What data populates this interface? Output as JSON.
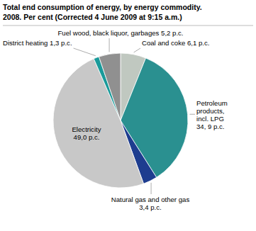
{
  "chart_data": {
    "type": "pie",
    "title": "Total end consumption of energy, by energy commodity.",
    "subtitle": "2008. Per cent (Corrected 4 June 2009 at 9:15 a.m.)",
    "categories": [
      "Coal and coke 6,1 p.c.",
      "Petroleum\nproducts,\nincl. LPG\n34, 9 p.c.",
      "Natural gas and other gas\n3,4 p.c.",
      "Electricity\n49,0 p.c.",
      "District heating 1,3 p.c.",
      "Fuel wood, black liquor, garbages 5,2 p.c."
    ],
    "values": [
      6.1,
      34.9,
      3.4,
      49.0,
      1.3,
      5.2
    ],
    "colors": [
      "#c0c8c0",
      "#2a9090",
      "#1e3d8f",
      "#c8c8c8",
      "#1a9a9a",
      "#909090"
    ]
  }
}
